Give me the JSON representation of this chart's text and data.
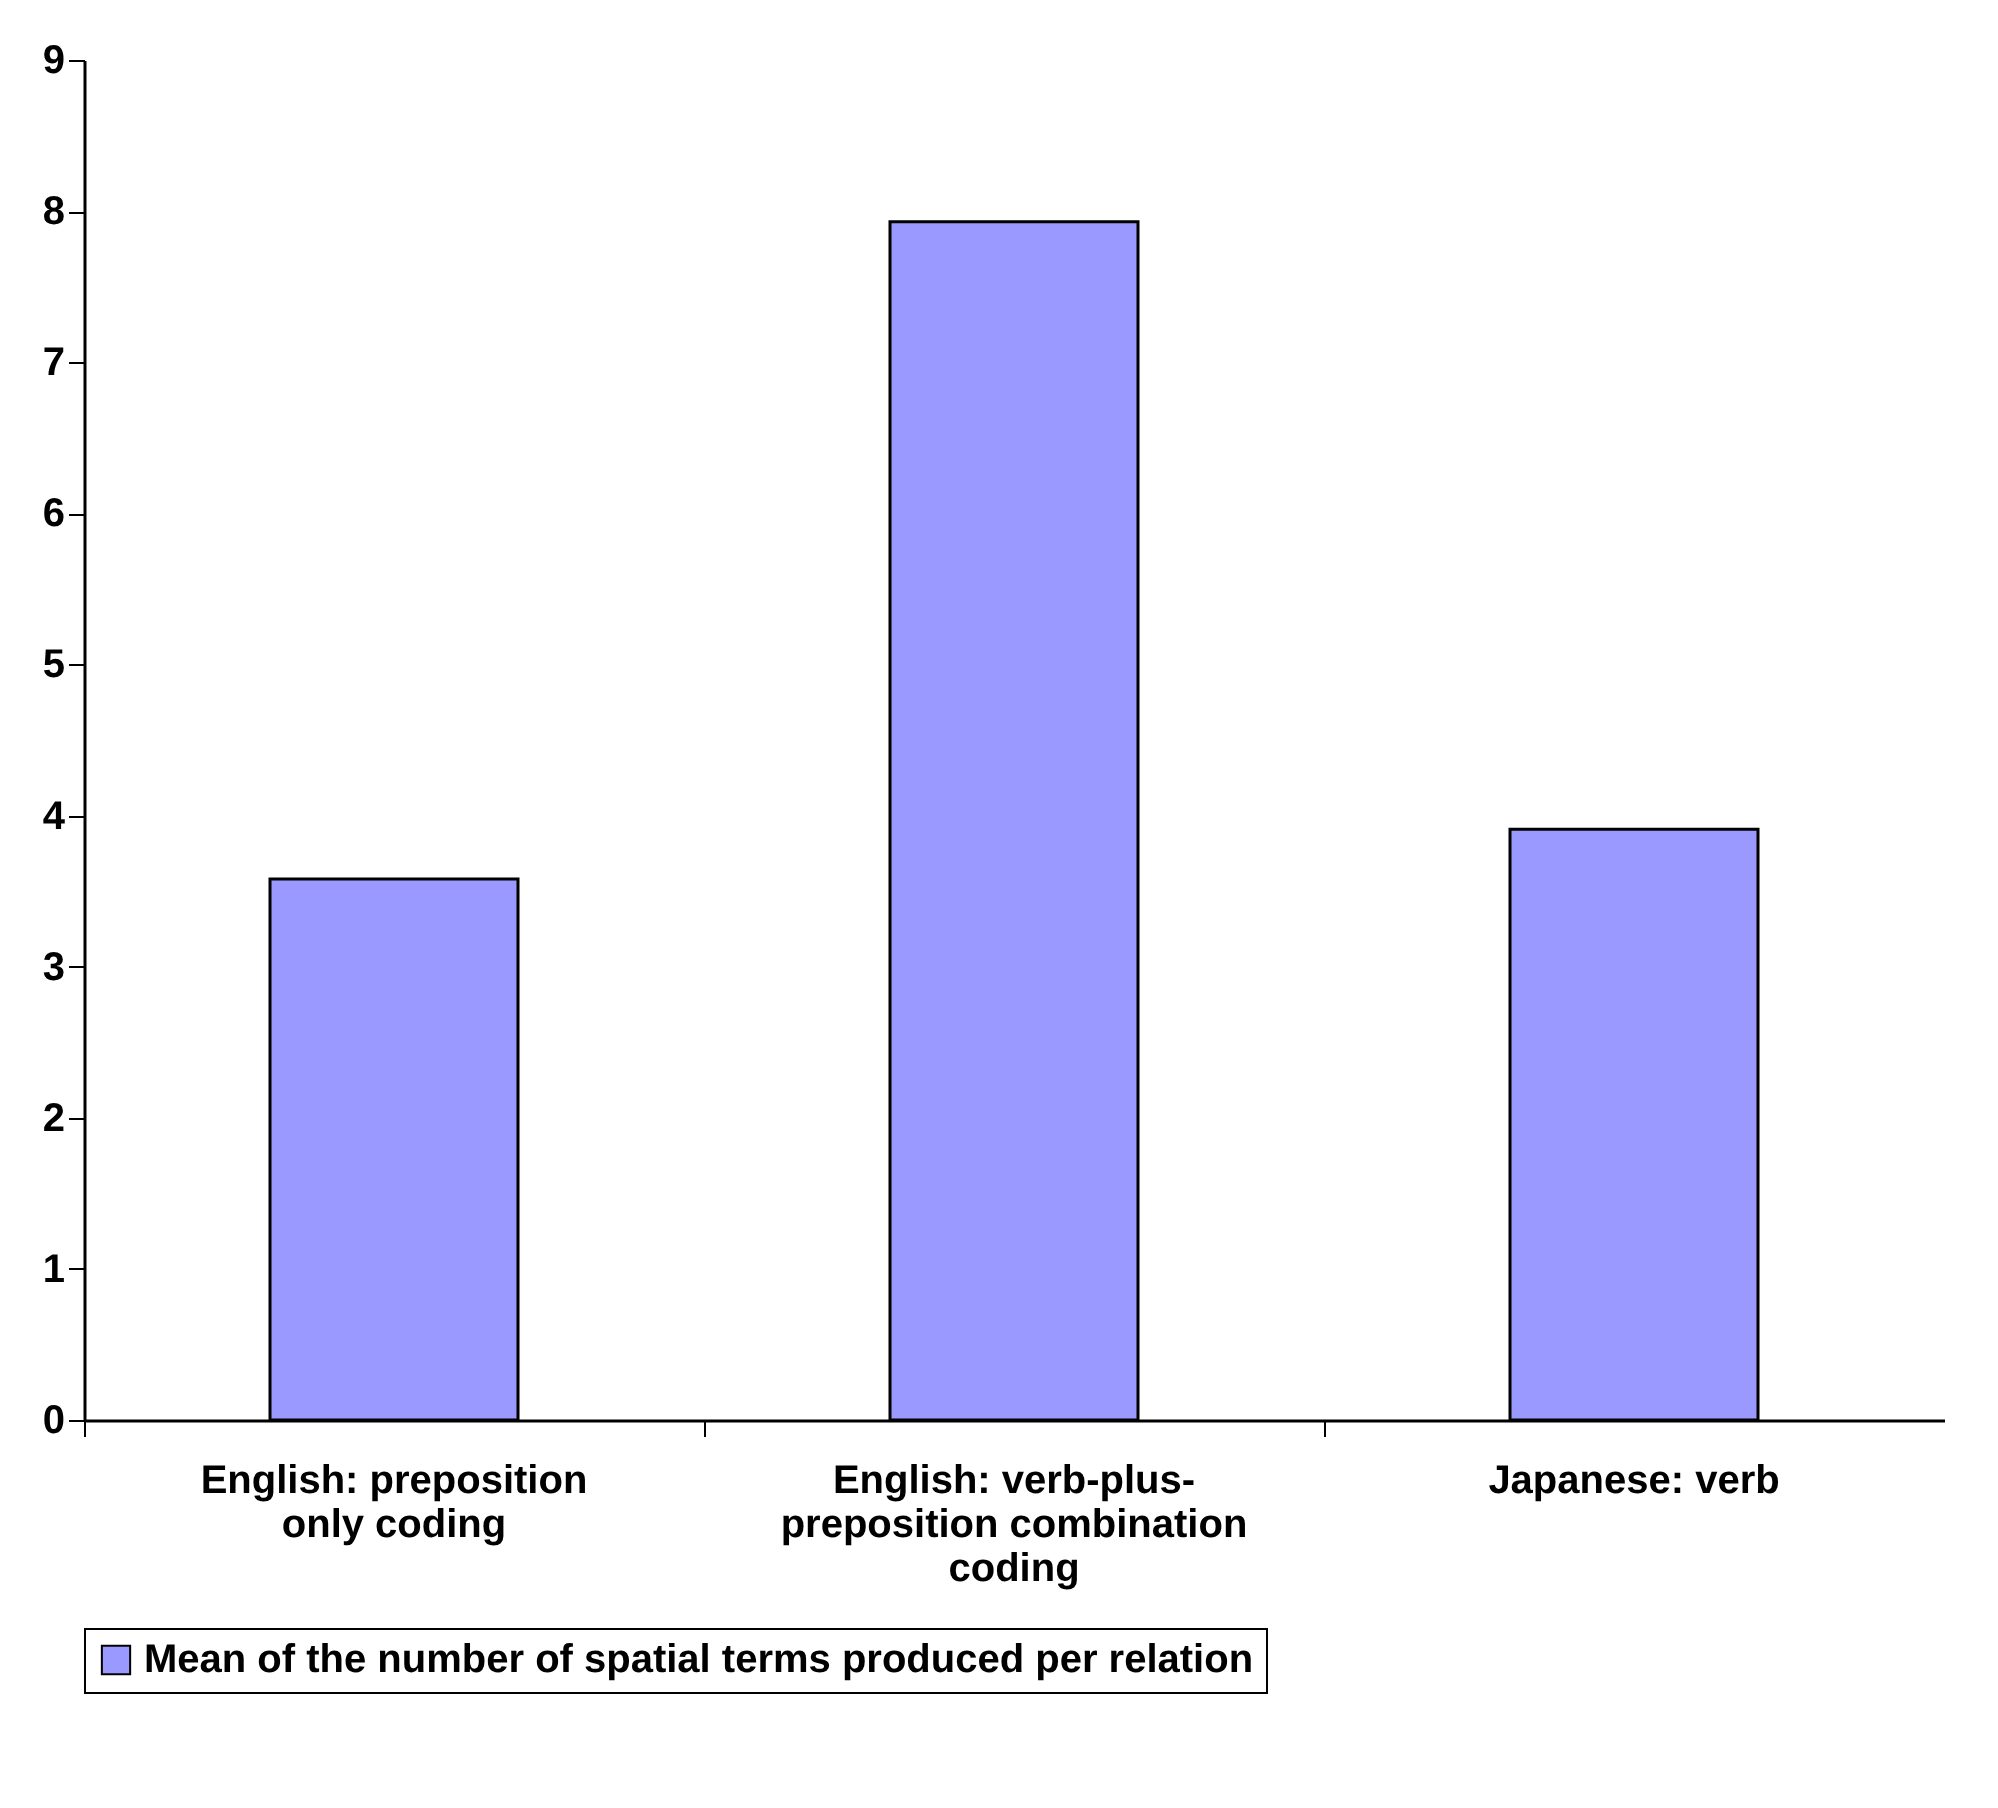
{
  "chart_data": {
    "type": "bar",
    "categories": [
      "English: preposition only coding",
      "English: verb-plus-preposition combination coding",
      "Japanese: verb"
    ],
    "series": [
      {
        "name": "Mean of the number of spatial terms produced per relation",
        "color": "#9999ff",
        "values": [
          3.58,
          7.93,
          3.91
        ]
      }
    ],
    "ylim": [
      0,
      9
    ],
    "yticks": [
      0,
      1,
      2,
      3,
      4,
      5,
      6,
      7,
      8,
      9
    ],
    "grid": false,
    "legend": "bottom"
  }
}
